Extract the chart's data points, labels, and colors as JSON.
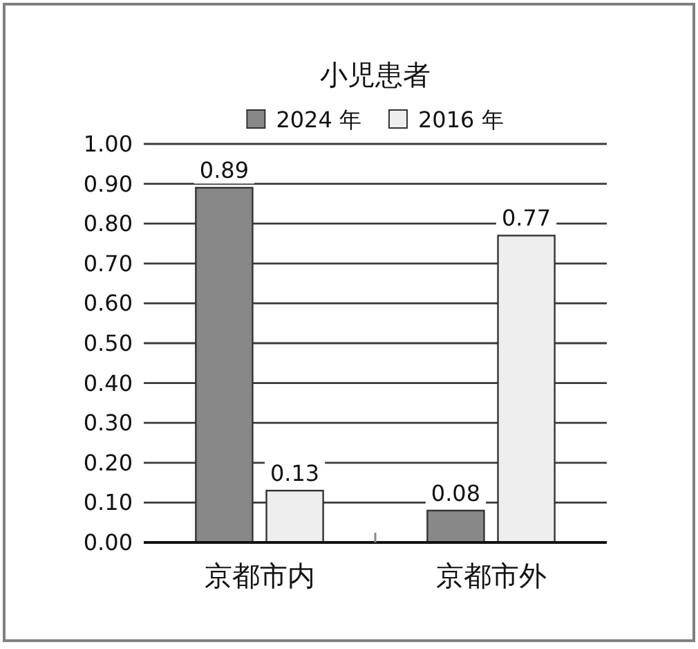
{
  "chart_data": {
    "type": "bar",
    "title": "小児患者",
    "categories": [
      "京都市内",
      "京都市外"
    ],
    "series": [
      {
        "name": "2024 年",
        "color": "#888888",
        "values": [
          0.89,
          0.08
        ]
      },
      {
        "name": "2016 年",
        "color": "#eeeeee",
        "values": [
          0.13,
          0.77
        ]
      }
    ],
    "ylim": [
      0,
      1
    ],
    "yticks": [
      {
        "value": 0,
        "label": "0.00"
      },
      {
        "value": 0.1,
        "label": "0.10"
      },
      {
        "value": 0.2,
        "label": "0.20"
      },
      {
        "value": 0.3,
        "label": "0.30"
      },
      {
        "value": 0.4,
        "label": "0.40"
      },
      {
        "value": 0.5,
        "label": "0.50"
      },
      {
        "value": 0.6,
        "label": "0.60"
      },
      {
        "value": 0.7,
        "label": "0.70"
      },
      {
        "value": 0.8,
        "label": "0.80"
      },
      {
        "value": 0.9,
        "label": "0.90"
      },
      {
        "value": 1,
        "label": "1.00"
      }
    ],
    "grid": "y",
    "legend": "top",
    "data_labels": true
  }
}
